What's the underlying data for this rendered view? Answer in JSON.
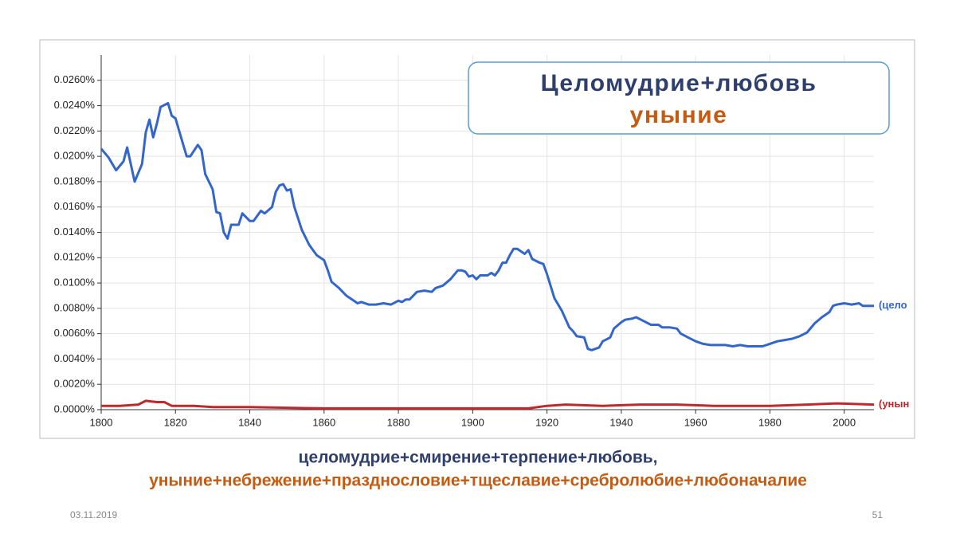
{
  "chart_data": {
    "type": "line",
    "legend_box": [
      "Целомудрие+любовь",
      "уныние"
    ],
    "caption": [
      "целомудрие+смирение+терпение+любовь,",
      "уныние+небрежение+празднословие+тщеславие+сребролюбие+любоначалие"
    ],
    "date": "03.11.2019",
    "page": "51",
    "xlim": [
      1800,
      2008
    ],
    "xticks": [
      1800,
      1820,
      1840,
      1860,
      1880,
      1900,
      1920,
      1940,
      1960,
      1980,
      2000
    ],
    "ylim": [
      0,
      0.028
    ],
    "yticks": [
      {
        "value": 0,
        "label": "0.0000%"
      },
      {
        "value": 0.002,
        "label": "0.0020%"
      },
      {
        "value": 0.004,
        "label": "0.0040%"
      },
      {
        "value": 0.006,
        "label": "0.0060%"
      },
      {
        "value": 0.008,
        "label": "0.0080%"
      },
      {
        "value": 0.01,
        "label": "0.0100%"
      },
      {
        "value": 0.012,
        "label": "0.0120%"
      },
      {
        "value": 0.014,
        "label": "0.0140%"
      },
      {
        "value": 0.016,
        "label": "0.0160%"
      },
      {
        "value": 0.018,
        "label": "0.0180%"
      },
      {
        "value": 0.02,
        "label": "0.0200%"
      },
      {
        "value": 0.022,
        "label": "0.0220%"
      },
      {
        "value": 0.024,
        "label": "0.0240%"
      },
      {
        "value": 0.026,
        "label": "0.0260%"
      }
    ],
    "grid": true,
    "series": [
      {
        "name": "(цело",
        "color": "#3366cc",
        "x": [
          1800,
          1802,
          1804,
          1806,
          1807,
          1809,
          1811,
          1812,
          1813,
          1814,
          1815,
          1816,
          1818,
          1819,
          1820,
          1822,
          1823,
          1824,
          1826,
          1827,
          1828,
          1830,
          1831,
          1832,
          1833,
          1834,
          1835,
          1837,
          1838,
          1840,
          1841,
          1843,
          1844,
          1846,
          1847,
          1848,
          1849,
          1850,
          1851,
          1852,
          1854,
          1856,
          1858,
          1860,
          1861,
          1862,
          1864,
          1866,
          1868,
          1869,
          1870,
          1872,
          1874,
          1876,
          1878,
          1880,
          1881,
          1882,
          1883,
          1885,
          1887,
          1889,
          1890,
          1892,
          1894,
          1896,
          1897,
          1898,
          1899,
          1900,
          1901,
          1902,
          1904,
          1905,
          1906,
          1907,
          1908,
          1909,
          1910,
          1911,
          1912,
          1914,
          1915,
          1916,
          1918,
          1919,
          1920,
          1922,
          1924,
          1926,
          1927,
          1928,
          1930,
          1931,
          1932,
          1934,
          1935,
          1937,
          1938,
          1940,
          1941,
          1943,
          1944,
          1946,
          1948,
          1950,
          1951,
          1953,
          1955,
          1956,
          1958,
          1960,
          1962,
          1964,
          1966,
          1968,
          1970,
          1972,
          1974,
          1976,
          1978,
          1980,
          1982,
          1984,
          1986,
          1988,
          1990,
          1992,
          1994,
          1996,
          1997,
          1998,
          2000,
          2002,
          2004,
          2005,
          2008
        ],
        "values": [
          0.0206,
          0.0199,
          0.0189,
          0.0196,
          0.0207,
          0.018,
          0.0194,
          0.0219,
          0.0229,
          0.0215,
          0.0226,
          0.0239,
          0.0242,
          0.0232,
          0.023,
          0.021,
          0.02,
          0.02,
          0.0209,
          0.0205,
          0.0186,
          0.0174,
          0.0156,
          0.0155,
          0.014,
          0.0135,
          0.0146,
          0.0146,
          0.0155,
          0.0149,
          0.0149,
          0.0157,
          0.0155,
          0.016,
          0.0172,
          0.0177,
          0.0178,
          0.0173,
          0.0174,
          0.016,
          0.0142,
          0.013,
          0.0122,
          0.0118,
          0.011,
          0.0101,
          0.0096,
          0.009,
          0.0086,
          0.0084,
          0.0085,
          0.0083,
          0.0083,
          0.0084,
          0.0083,
          0.0086,
          0.0085,
          0.0087,
          0.0087,
          0.0093,
          0.0094,
          0.0093,
          0.0096,
          0.0098,
          0.0103,
          0.011,
          0.011,
          0.0109,
          0.0105,
          0.0106,
          0.0103,
          0.0106,
          0.0106,
          0.0108,
          0.0106,
          0.011,
          0.0116,
          0.0116,
          0.0122,
          0.0127,
          0.0127,
          0.0123,
          0.0126,
          0.0119,
          0.0116,
          0.0115,
          0.0107,
          0.0088,
          0.0078,
          0.0065,
          0.0062,
          0.0058,
          0.0057,
          0.0048,
          0.0047,
          0.0049,
          0.0054,
          0.0057,
          0.0064,
          0.0069,
          0.0071,
          0.0072,
          0.0073,
          0.007,
          0.0067,
          0.0067,
          0.0065,
          0.0065,
          0.0064,
          0.006,
          0.0057,
          0.0054,
          0.0052,
          0.0051,
          0.0051,
          0.0051,
          0.005,
          0.0051,
          0.005,
          0.005,
          0.005,
          0.0052,
          0.0054,
          0.0055,
          0.0056,
          0.0058,
          0.0061,
          0.0068,
          0.0073,
          0.0077,
          0.0082,
          0.0083,
          0.0084,
          0.0083,
          0.0084,
          0.0082,
          0.0082
        ]
      },
      {
        "name": "(унын",
        "color": "#c0282d",
        "x": [
          1800,
          1805,
          1810,
          1812,
          1815,
          1817,
          1819,
          1825,
          1830,
          1840,
          1860,
          1880,
          1900,
          1915,
          1920,
          1925,
          1935,
          1945,
          1955,
          1965,
          1980,
          1990,
          1998,
          2008
        ],
        "values": [
          0.0003,
          0.0003,
          0.0004,
          0.0007,
          0.0006,
          0.0006,
          0.0003,
          0.0003,
          0.0002,
          0.0002,
          0.0001,
          0.0001,
          0.0001,
          0.0001,
          0.0003,
          0.0004,
          0.0003,
          0.0004,
          0.0004,
          0.0003,
          0.0003,
          0.0004,
          0.0005,
          0.0004
        ]
      }
    ]
  }
}
